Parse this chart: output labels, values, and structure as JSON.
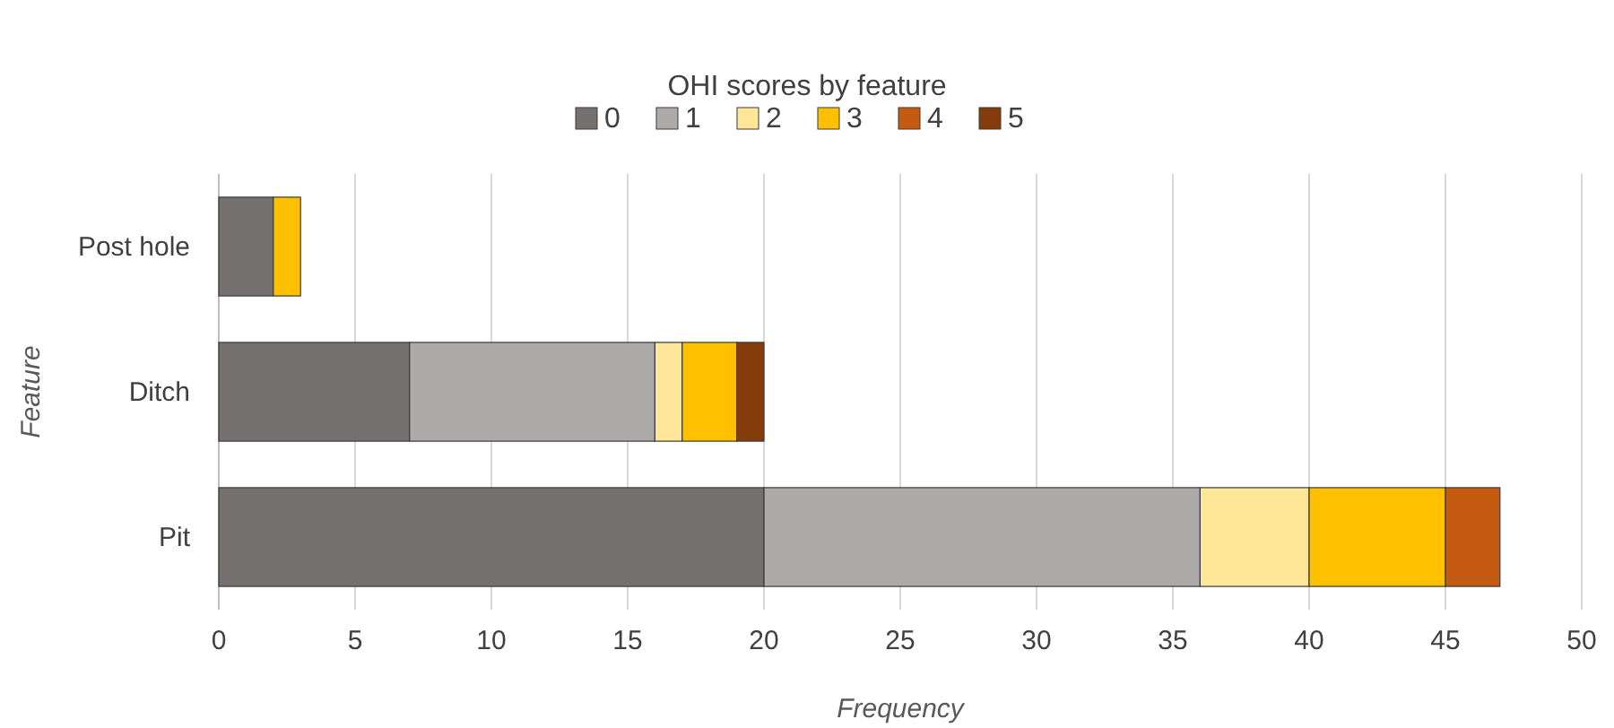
{
  "chart_data": {
    "type": "bar",
    "title": "OHI scores by feature",
    "orientation": "horizontal",
    "stacked": true,
    "categories": [
      "Post hole",
      "Ditch",
      "Pit"
    ],
    "series": [
      {
        "name": "0",
        "color": "#767171",
        "values": [
          2,
          7,
          20
        ]
      },
      {
        "name": "1",
        "color": "#aeaaaa",
        "values": [
          0,
          9,
          16
        ]
      },
      {
        "name": "2",
        "color": "#ffe699",
        "values": [
          0,
          1,
          4
        ]
      },
      {
        "name": "3",
        "color": "#ffc000",
        "values": [
          1,
          2,
          5
        ]
      },
      {
        "name": "4",
        "color": "#c55a11",
        "values": [
          0,
          0,
          2
        ]
      },
      {
        "name": "5",
        "color": "#843c0c",
        "values": [
          0,
          1,
          0
        ]
      }
    ],
    "xlim": [
      0,
      50
    ],
    "xticks": [
      0,
      5,
      10,
      15,
      20,
      25,
      30,
      35,
      40,
      45,
      50
    ],
    "xlabel": "Frequency",
    "ylabel": "Feature",
    "grid": "x",
    "legend": "top"
  }
}
